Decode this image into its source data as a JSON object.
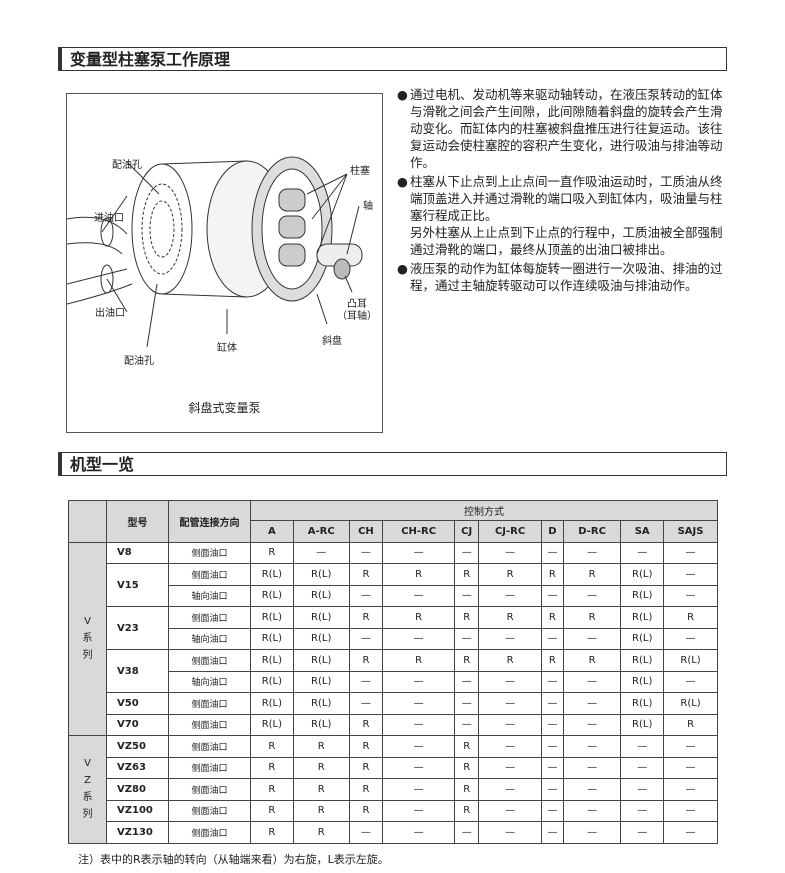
{
  "section1": {
    "title": "变量型柱塞泵工作原理"
  },
  "diagram": {
    "labels": {
      "port_top": "配油孔",
      "inlet": "进油口",
      "outlet": "出油口",
      "port_bottom": "配油孔",
      "cylinder": "缸体",
      "plunger": "柱塞",
      "shaft": "轴",
      "trunnion": "凸耳\n（耳轴）",
      "swashplate": "斜盘"
    },
    "caption": "斜盘式变量泵"
  },
  "description": {
    "bullet": "●",
    "paragraphs": [
      "通过电机、发动机等来驱动轴转动，在液压泵转动的缸体与滑靴之间会产生间隙，此间隙随着斜盘的旋转会产生滑动变化。而缸体内的柱塞被斜盘推压进行往复运动。该往复运动会使柱塞腔的容积产生变化，进行吸油与排油等动作。",
      "柱塞从下止点到上止点间一直作吸油运动时，工质油从终端顶盖进入并通过滑靴的端口吸入到缸体内，吸油量与柱塞行程成正比。\n另外柱塞从上止点到下止点的行程中，工质油被全部强制通过滑靴的端口，最终从顶盖的出油口被排出。",
      "液压泵的动作为缸体每旋转一圈进行一次吸油、排油的过程，通过主轴旋转驱动可以作连续吸油与排油动作。"
    ]
  },
  "section2": {
    "title": "机型一览"
  },
  "table": {
    "header_model": "型号",
    "header_direction": "配管连接方向",
    "header_control": "控制方式",
    "controls": [
      "A",
      "A-RC",
      "CH",
      "CH-RC",
      "CJ",
      "CJ-RC",
      "D",
      "D-RC",
      "SA",
      "SAJS"
    ],
    "groups": [
      {
        "series": "V\n系\n列",
        "models": [
          {
            "model": "V8",
            "rows": [
              {
                "dir": "侧面油口",
                "vals": [
                  "R",
                  "—",
                  "—",
                  "—",
                  "—",
                  "—",
                  "—",
                  "—",
                  "—",
                  "—"
                ]
              }
            ]
          },
          {
            "model": "V15",
            "rows": [
              {
                "dir": "侧面油口",
                "vals": [
                  "R(L)",
                  "R(L)",
                  "R",
                  "R",
                  "R",
                  "R",
                  "R",
                  "R",
                  "R(L)",
                  "—"
                ]
              },
              {
                "dir": "轴向油口",
                "vals": [
                  "R(L)",
                  "R(L)",
                  "—",
                  "—",
                  "—",
                  "—",
                  "—",
                  "—",
                  "R(L)",
                  "—"
                ]
              }
            ]
          },
          {
            "model": "V23",
            "rows": [
              {
                "dir": "侧面油口",
                "vals": [
                  "R(L)",
                  "R(L)",
                  "R",
                  "R",
                  "R",
                  "R",
                  "R",
                  "R",
                  "R(L)",
                  "R"
                ]
              },
              {
                "dir": "轴向油口",
                "vals": [
                  "R(L)",
                  "R(L)",
                  "—",
                  "—",
                  "—",
                  "—",
                  "—",
                  "—",
                  "R(L)",
                  "—"
                ]
              }
            ]
          },
          {
            "model": "V38",
            "rows": [
              {
                "dir": "侧面油口",
                "vals": [
                  "R(L)",
                  "R(L)",
                  "R",
                  "R",
                  "R",
                  "R",
                  "R",
                  "R",
                  "R(L)",
                  "R(L)"
                ]
              },
              {
                "dir": "轴向油口",
                "vals": [
                  "R(L)",
                  "R(L)",
                  "—",
                  "—",
                  "—",
                  "—",
                  "—",
                  "—",
                  "R(L)",
                  "—"
                ]
              }
            ]
          },
          {
            "model": "V50",
            "rows": [
              {
                "dir": "侧面油口",
                "vals": [
                  "R(L)",
                  "R(L)",
                  "—",
                  "—",
                  "—",
                  "—",
                  "—",
                  "—",
                  "R(L)",
                  "R(L)"
                ]
              }
            ]
          },
          {
            "model": "V70",
            "rows": [
              {
                "dir": "侧面油口",
                "vals": [
                  "R(L)",
                  "R(L)",
                  "R",
                  "—",
                  "—",
                  "—",
                  "—",
                  "—",
                  "R(L)",
                  "R"
                ]
              }
            ]
          }
        ]
      },
      {
        "series": "V\nZ\n系\n列",
        "models": [
          {
            "model": "VZ50",
            "rows": [
              {
                "dir": "侧面油口",
                "vals": [
                  "R",
                  "R",
                  "R",
                  "—",
                  "R",
                  "—",
                  "—",
                  "—",
                  "—",
                  "—"
                ]
              }
            ]
          },
          {
            "model": "VZ63",
            "rows": [
              {
                "dir": "侧面油口",
                "vals": [
                  "R",
                  "R",
                  "R",
                  "—",
                  "R",
                  "—",
                  "—",
                  "—",
                  "—",
                  "—"
                ]
              }
            ]
          },
          {
            "model": "VZ80",
            "rows": [
              {
                "dir": "侧面油口",
                "vals": [
                  "R",
                  "R",
                  "R",
                  "—",
                  "R",
                  "—",
                  "—",
                  "—",
                  "—",
                  "—"
                ]
              }
            ]
          },
          {
            "model": "VZ100",
            "rows": [
              {
                "dir": "侧面油口",
                "vals": [
                  "R",
                  "R",
                  "R",
                  "—",
                  "R",
                  "—",
                  "—",
                  "—",
                  "—",
                  "—"
                ]
              }
            ]
          },
          {
            "model": "VZ130",
            "rows": [
              {
                "dir": "侧面油口",
                "vals": [
                  "R",
                  "R",
                  "—",
                  "—",
                  "—",
                  "—",
                  "—",
                  "—",
                  "—",
                  "—"
                ]
              }
            ]
          }
        ]
      }
    ]
  },
  "note": "注）表中的R表示轴的转向（从轴端来看）为右旋，L表示左旋。"
}
